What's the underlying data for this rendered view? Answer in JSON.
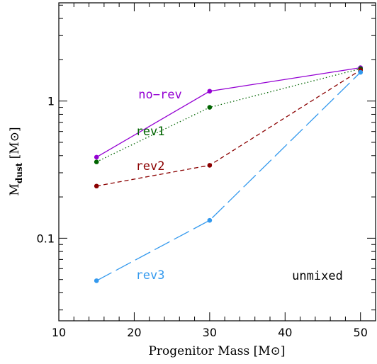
{
  "chart_data": {
    "type": "line",
    "x": [
      15,
      30,
      50
    ],
    "xlabel": "Progenitor Mass [M⊙]",
    "ylabel_main": "M",
    "ylabel_sub": "dust",
    "ylabel_unit": "[M⊙]",
    "xlim": [
      10,
      52
    ],
    "ylim": [
      0.025,
      5.2
    ],
    "yscale": "log",
    "xticks": [
      10,
      20,
      30,
      40,
      50
    ],
    "xtick_labels": [
      "10",
      "20",
      "30",
      "40",
      "50"
    ],
    "yticks": [
      0.1,
      1
    ],
    "ytick_labels": [
      "0.1",
      "1"
    ],
    "grid": false,
    "annotation": "unmixed",
    "series": [
      {
        "name": "no−rev",
        "values": [
          0.39,
          1.18,
          1.75
        ],
        "color": "#9400D3",
        "dash": "solid"
      },
      {
        "name": "rev1",
        "values": [
          0.36,
          0.9,
          1.72
        ],
        "color": "#006400",
        "dash": "dotted"
      },
      {
        "name": "rev2",
        "values": [
          0.24,
          0.34,
          1.68
        ],
        "color": "#8B0000",
        "dash": "dashed"
      },
      {
        "name": "rev3",
        "values": [
          0.049,
          0.135,
          1.62
        ],
        "color": "#3399EE",
        "dash": "longdash"
      }
    ]
  }
}
